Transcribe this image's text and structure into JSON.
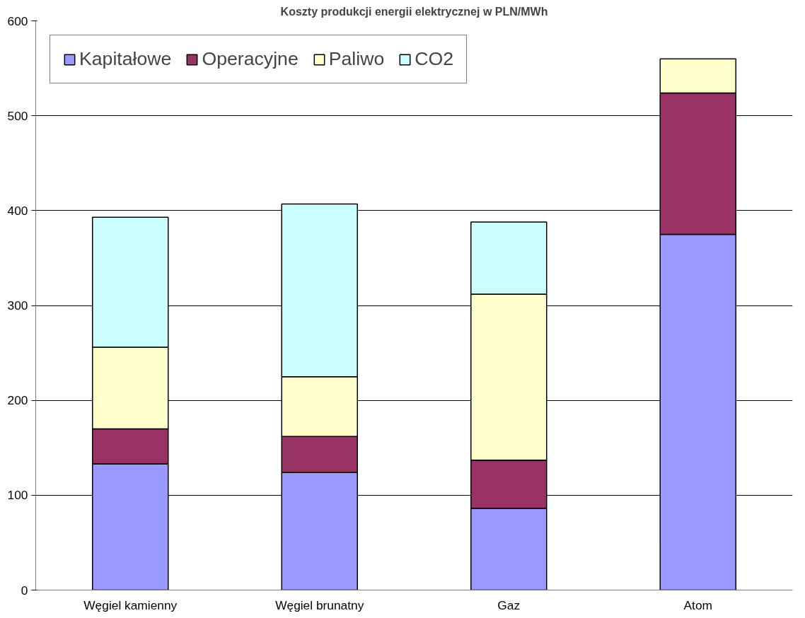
{
  "chart_data": {
    "type": "bar",
    "title": "Koszty produkcji energii elektrycznej w PLN/MWh",
    "categories": [
      "Węgiel kamienny",
      "Węgiel brunatny",
      "Gaz",
      "Atom"
    ],
    "stacked": true,
    "series": [
      {
        "name": "Kapitałowe",
        "color": "#9999ff",
        "values": [
          133,
          124,
          86,
          375
        ]
      },
      {
        "name": "Operacyjne",
        "color": "#993366",
        "values": [
          37,
          38,
          51,
          149
        ]
      },
      {
        "name": "Paliwo",
        "color": "#ffffcc",
        "values": [
          86,
          63,
          175,
          36
        ]
      },
      {
        "name": "CO2",
        "color": "#ccffff",
        "values": [
          137,
          182,
          76,
          null
        ]
      }
    ],
    "ylim": [
      0,
      600
    ],
    "yticks": [
      0,
      100,
      200,
      300,
      400,
      500,
      600
    ],
    "grid": "y",
    "legend": "top left"
  }
}
